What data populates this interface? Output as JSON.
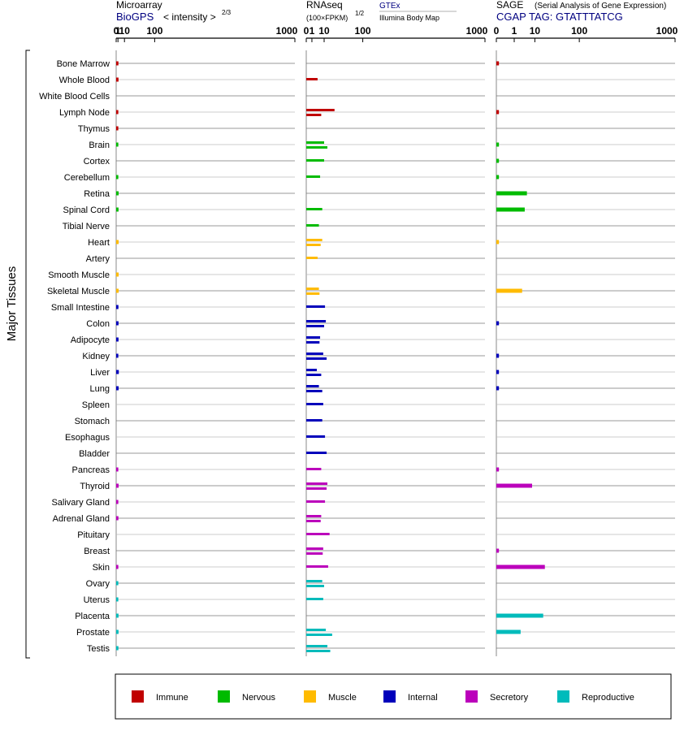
{
  "chart_data": {
    "type": "bar",
    "y_axis_title": "Major Tissues",
    "tissues": [
      "Bone Marrow",
      "Whole Blood",
      "White Blood Cells",
      "Lymph Node",
      "Thymus",
      "Brain",
      "Cortex",
      "Cerebellum",
      "Retina",
      "Spinal Cord",
      "Tibial Nerve",
      "Heart",
      "Artery",
      "Smooth Muscle",
      "Skeletal Muscle",
      "Small Intestine",
      "Colon",
      "Adipocyte",
      "Kidney",
      "Liver",
      "Lung",
      "Spleen",
      "Stomach",
      "Esophagus",
      "Bladder",
      "Pancreas",
      "Thyroid",
      "Salivary Gland",
      "Adrenal Gland",
      "Pituitary",
      "Breast",
      "Skin",
      "Ovary",
      "Uterus",
      "Placenta",
      "Prostate",
      "Testis"
    ],
    "tissue_groups": [
      "Immune",
      "Immune",
      "Immune",
      "Immune",
      "Immune",
      "Nervous",
      "Nervous",
      "Nervous",
      "Nervous",
      "Nervous",
      "Nervous",
      "Muscle",
      "Muscle",
      "Muscle",
      "Muscle",
      "Internal",
      "Internal",
      "Internal",
      "Internal",
      "Internal",
      "Internal",
      "Internal",
      "Internal",
      "Internal",
      "Internal",
      "Secretory",
      "Secretory",
      "Secretory",
      "Secretory",
      "Secretory",
      "Secretory",
      "Secretory",
      "Reproductive",
      "Reproductive",
      "Reproductive",
      "Reproductive",
      "Reproductive"
    ],
    "group_colors": {
      "Immune": "#c00000",
      "Nervous": "#00bb00",
      "Muscle": "#ffbb00",
      "Internal": "#0000bb",
      "Secretory": "#bb00bb",
      "Reproductive": "#00bbbb"
    },
    "legend": [
      "Immune",
      "Nervous",
      "Muscle",
      "Internal",
      "Secretory",
      "Reproductive"
    ],
    "panels": [
      {
        "title": "Microarray",
        "source": "BioGPS",
        "scale_label": "< intensity >",
        "scale_exponent": "2/3",
        "exponent": 0.6667,
        "ticks": [
          0,
          1,
          10,
          100,
          1000
        ],
        "tick_labels": [
          "0",
          "1",
          "10",
          "100",
          "1000"
        ],
        "xlim": [
          0,
          1000
        ],
        "values": [
          [
            1.4
          ],
          [
            1.5
          ],
          [],
          [
            1.3
          ],
          [
            1.3
          ],
          [
            1.3
          ],
          [],
          [
            1.3
          ],
          [
            1.6
          ],
          [
            1.5
          ],
          [],
          [
            1.6
          ],
          [],
          [
            1.6
          ],
          [
            1.6
          ],
          [
            1.4
          ],
          [
            1.5
          ],
          [
            1.5
          ],
          [
            1.3
          ],
          [
            1.8
          ],
          [
            1.6
          ],
          [],
          [],
          [],
          [],
          [
            1.3
          ],
          [
            1.6
          ],
          [
            1.3
          ],
          [
            1.4
          ],
          [],
          [],
          [
            1.3
          ],
          [
            1.3
          ],
          [
            1.3
          ],
          [
            1.5
          ],
          [
            1.5
          ],
          [
            1.4
          ]
        ]
      },
      {
        "title": "RNAseq",
        "source": "(100×FPKM)",
        "scale_exponent": "1/2",
        "gtex_label": "GTEx",
        "illumina_label": "Illumina Body Map",
        "exponent": 0.5,
        "ticks": [
          0,
          1,
          10,
          100,
          1000
        ],
        "tick_labels": [
          "0",
          "1",
          "10",
          "100",
          "1000"
        ],
        "xlim": [
          0,
          1000
        ],
        "values": [
          [],
          [
            4
          ],
          [],
          [
            25,
            7
          ],
          [],
          [
            10,
            14
          ],
          [
            10
          ],
          [
            6
          ],
          [],
          [
            8
          ],
          [
            5
          ],
          [
            8,
            6.5
          ],
          [
            4
          ],
          [],
          [
            5,
            5.5
          ],
          [
            11
          ],
          [
            12,
            10
          ],
          [
            6,
            5.5
          ],
          [
            9,
            13
          ],
          [
            3.5,
            7
          ],
          [
            5,
            8
          ],
          [
            9
          ],
          [
            8
          ],
          [
            11
          ],
          [
            13
          ],
          [
            7
          ],
          [
            14,
            13
          ],
          [
            11
          ],
          [
            7,
            6.5
          ],
          [
            17
          ],
          [
            9,
            8.5
          ],
          [
            15
          ],
          [
            8,
            10
          ],
          [
            9
          ],
          [],
          [
            12,
            21
          ],
          [
            14,
            18
          ]
        ]
      },
      {
        "title": "SAGE",
        "subtitle": "(Serial Analysis of Gene Expression)",
        "source": "CGAP TAG: GTATTTATCG",
        "exponent": 0.3333,
        "ticks": [
          0,
          1,
          10,
          100,
          1000
        ],
        "tick_labels": [
          "0",
          "1",
          "10",
          "100",
          "1000"
        ],
        "xlim": [
          0,
          1000
        ],
        "values": [
          [
            0.003
          ],
          [],
          [],
          [
            0.003
          ],
          [],
          [
            0.003
          ],
          [
            0.003
          ],
          [
            0.003
          ],
          [
            5
          ],
          [
            4
          ],
          [],
          [
            0.003
          ],
          [],
          [],
          [
            3
          ],
          [],
          [
            0.003
          ],
          [],
          [
            0.003
          ],
          [
            0.003
          ],
          [
            0.003
          ],
          [],
          [],
          [],
          [],
          [
            0.003
          ],
          [
            8
          ],
          [],
          [],
          [],
          [
            0.003
          ],
          [
            20
          ],
          [],
          [],
          [
            18
          ],
          [
            2.5
          ],
          []
        ]
      }
    ]
  }
}
